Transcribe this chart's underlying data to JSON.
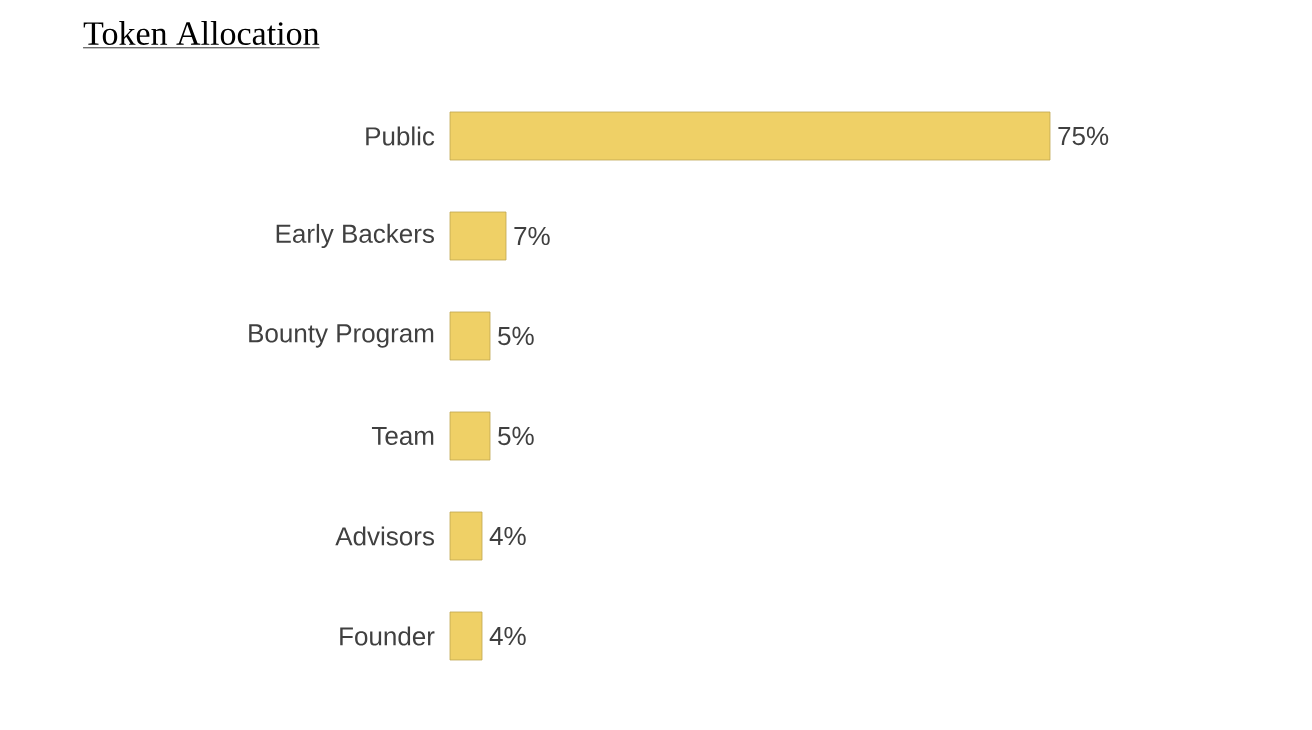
{
  "chart_data": {
    "type": "bar",
    "orientation": "horizontal",
    "title": "Token Allocation",
    "categories": [
      "Public",
      "Early Backers",
      "Bounty Program",
      "Team",
      "Advisors",
      "Founder"
    ],
    "values": [
      75,
      7,
      5,
      5,
      4,
      4
    ],
    "value_labels": [
      "75%",
      "7%",
      "5%",
      "5%",
      "4%",
      "4%"
    ],
    "color": "#efd066",
    "xlim": [
      0,
      75
    ]
  }
}
